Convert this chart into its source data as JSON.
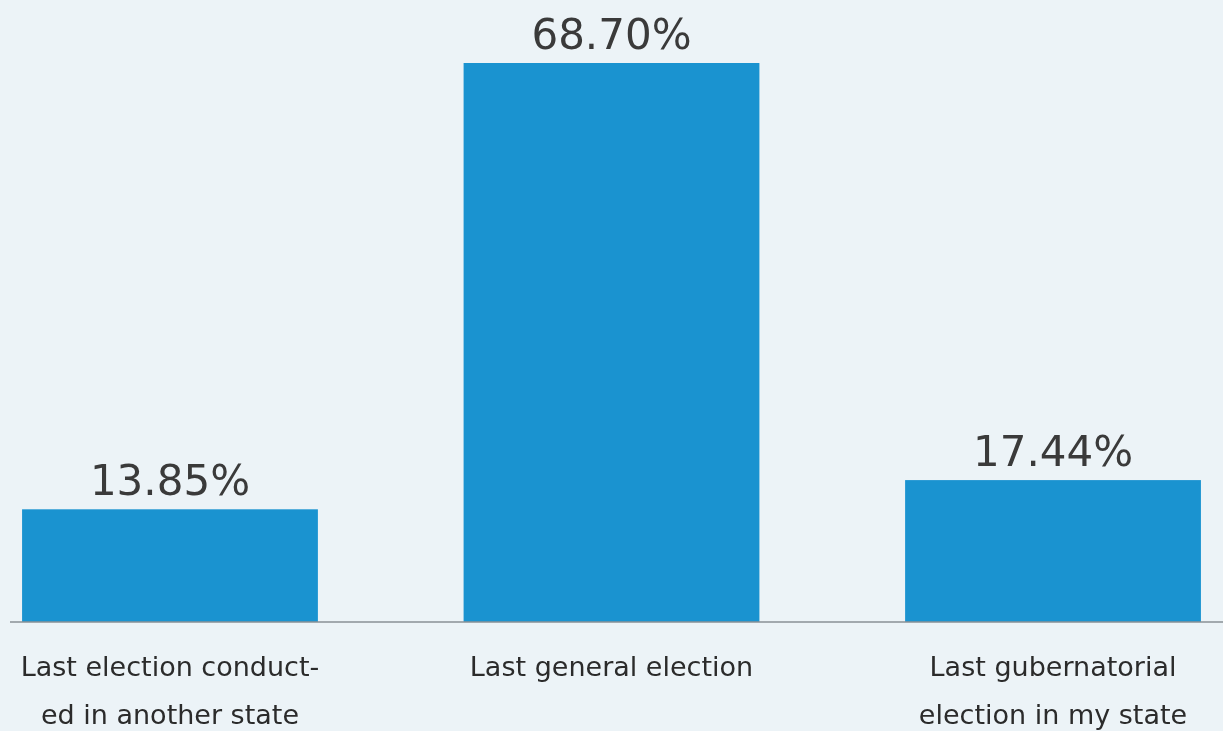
{
  "chart_data": {
    "type": "bar",
    "categories": [
      "Last election conduct-ed in another state",
      "Last general election",
      "Last gubernatorial election in my state"
    ],
    "values": [
      13.85,
      68.7,
      17.44
    ],
    "value_labels": [
      "13.85%",
      "68.70%",
      "17.44%"
    ],
    "color": "#1a93d0"
  }
}
